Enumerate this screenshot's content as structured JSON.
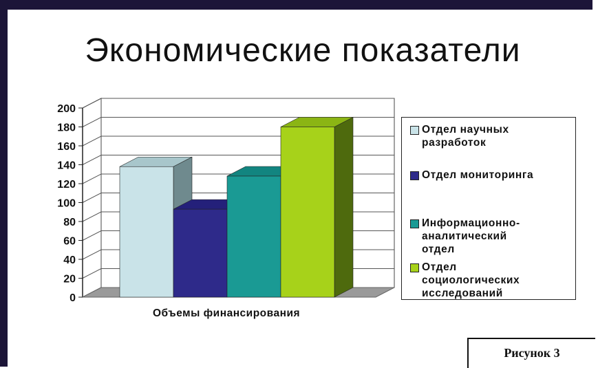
{
  "slide": {
    "title": "Экономические показатели",
    "caption": "Рисунок 3"
  },
  "colors": {
    "frame": "#1c1538",
    "floor": "#9a9a9a"
  },
  "chart_data": {
    "type": "bar",
    "title": "",
    "categories": [
      "Объемы финансирования"
    ],
    "xlabel": "",
    "ylabel": "",
    "ylim": [
      0,
      200
    ],
    "yticks": [
      0,
      20,
      40,
      60,
      80,
      100,
      120,
      140,
      160,
      180,
      200
    ],
    "grid": true,
    "legend_position": "right",
    "three_d": true,
    "series": [
      {
        "name": "Отдел научных разработок",
        "values": [
          138
        ],
        "color": "#c9e3e8",
        "side": "#6f8a8e",
        "top": "#a8c6cb"
      },
      {
        "name": "Отдел мониторинга",
        "values": [
          93
        ],
        "color": "#2e2a8a",
        "side": "#1c1a55",
        "top": "#24207a"
      },
      {
        "name": "Информационно-аналитический отдел",
        "values": [
          128
        ],
        "color": "#1a9a94",
        "side": "#0f5e5a",
        "top": "#128580"
      },
      {
        "name": "Отдел социологических исследований",
        "values": [
          180
        ],
        "color": "#a7d21a",
        "side": "#4e6a0d",
        "top": "#8bb514"
      }
    ],
    "legend_lines": [
      "Отдел научных\nразработок",
      "Отдел мониторинга",
      "Информационно-\nаналитический\nотдел",
      "Отдел\nсоциологических\nисследований"
    ]
  }
}
